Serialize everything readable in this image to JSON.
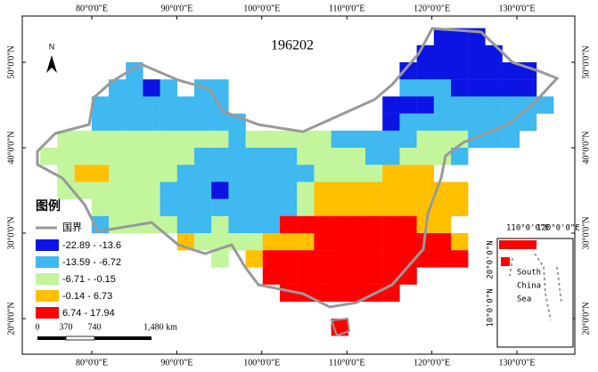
{
  "title": "196202",
  "north": "N",
  "lon_labels": [
    "80°0'0\"E",
    "90°0'0\"E",
    "100°0'0\"E",
    "110°0'0\"E",
    "120°0'0\"E",
    "130°0'0\"E"
  ],
  "lat_labels": [
    "50°0'0\"N",
    "40°0'0\"N",
    "30°0'0\"N",
    "20°0'0\"N"
  ],
  "legend": {
    "title": "图例",
    "border": "国界",
    "items": [
      {
        "label": "-22.89 - -13.6",
        "color": "#0c14e4"
      },
      {
        "label": "-13.59 - -6.72",
        "color": "#40b8f0"
      },
      {
        "label": "-6.71 - -0.15",
        "color": "#c2f59c"
      },
      {
        "label": "-0.14 - 6.73",
        "color": "#ffc000"
      },
      {
        "label": "6.74 - 17.94",
        "color": "#ff0000"
      }
    ]
  },
  "scale_bar": [
    "0",
    "370",
    "740",
    "1,480 km"
  ],
  "inset": {
    "lon_labels": [
      "110°0'0\"E",
      "120°0'0\"E"
    ],
    "lat_labels": [
      "20°0'0\"N",
      "10°0'0\"N"
    ],
    "sea_label": [
      "South",
      "China",
      "Sea"
    ]
  }
}
